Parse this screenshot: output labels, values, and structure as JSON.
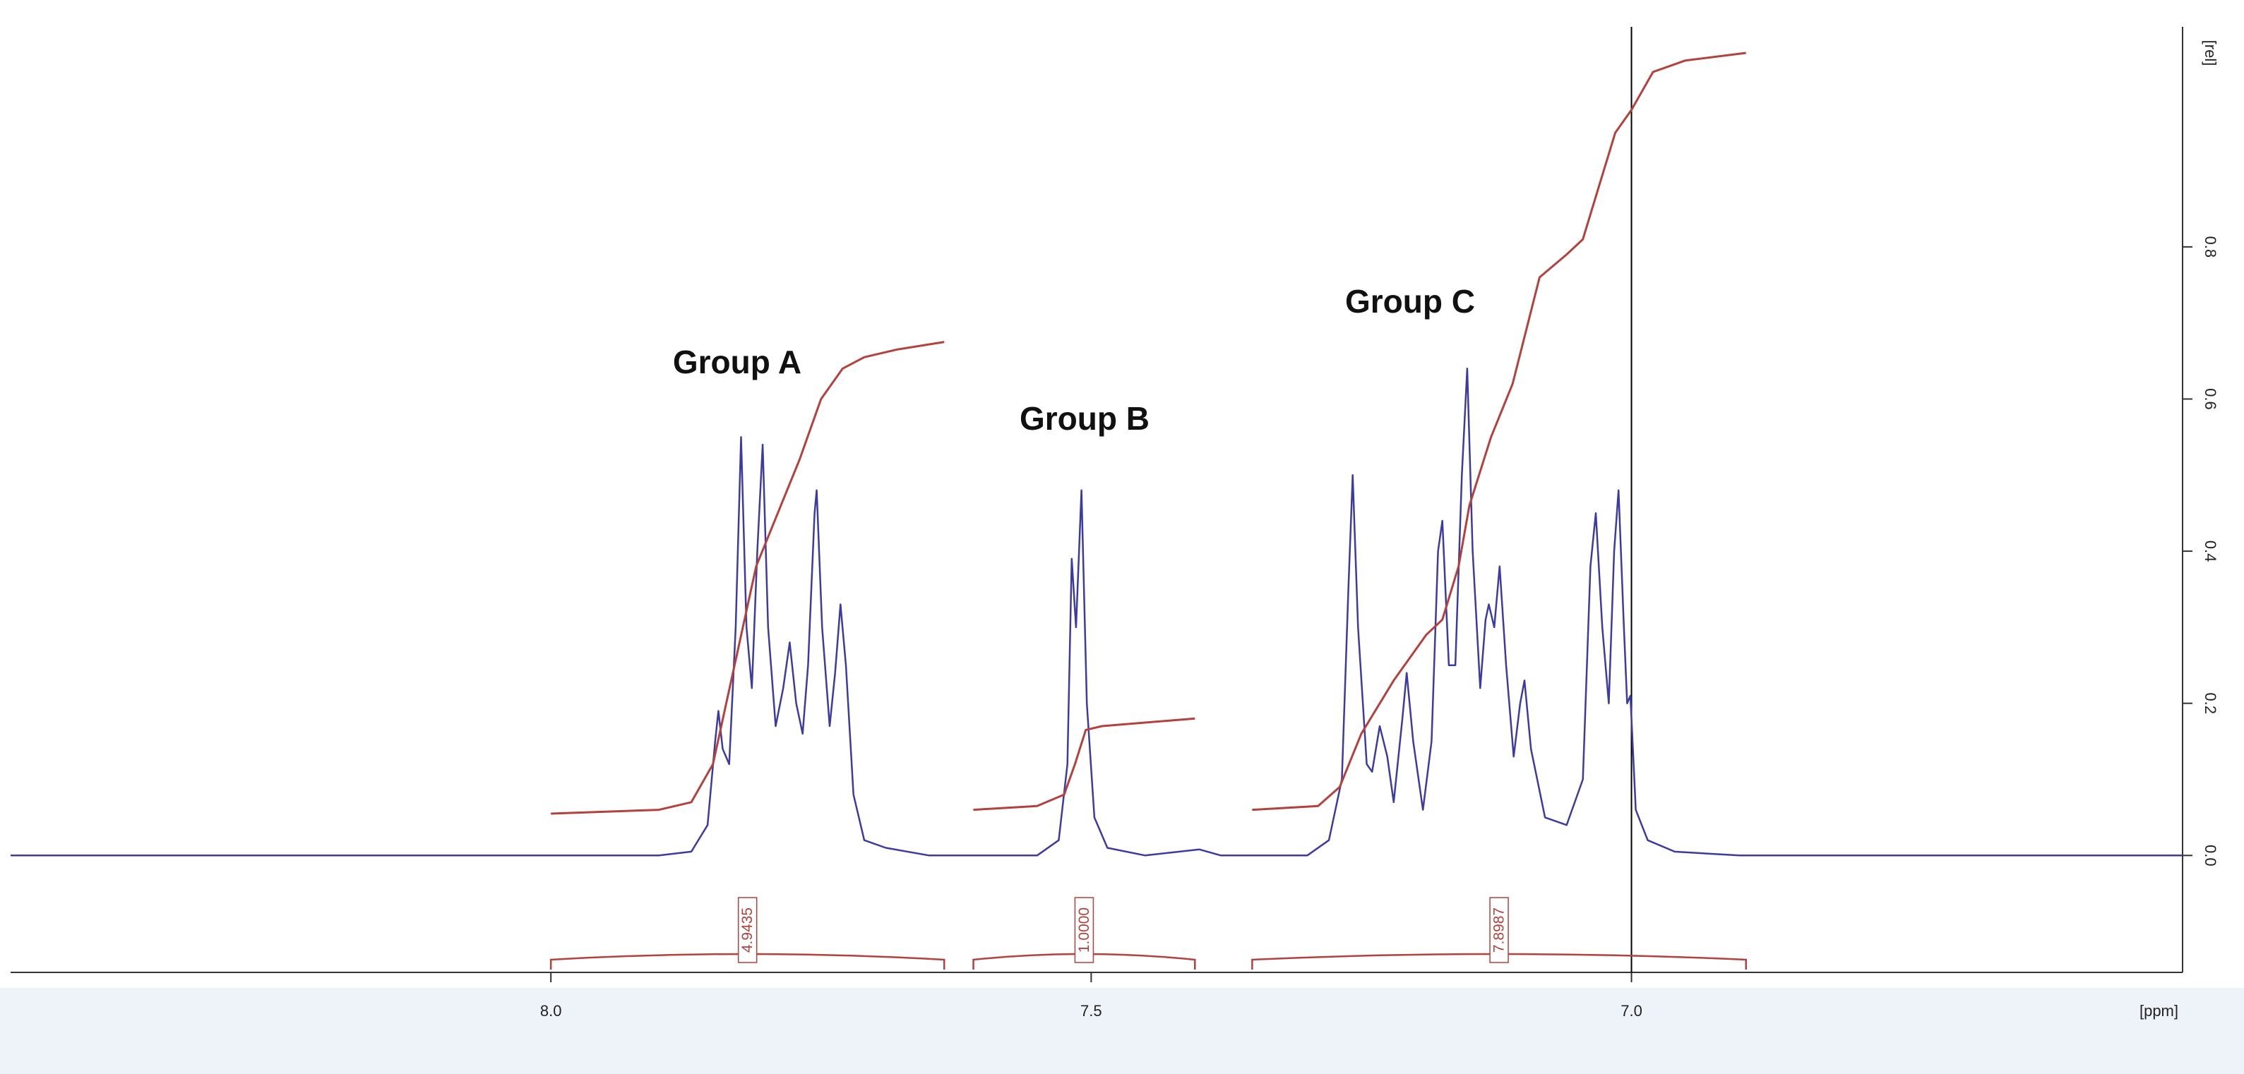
{
  "chart_data": {
    "type": "line",
    "x_label": "[ppm]",
    "y_label": "[rel]",
    "xlim": [
      8.5,
      6.49
    ],
    "ylim": [
      -0.15,
      1.08
    ],
    "xticks": [
      {
        "value": 8,
        "label": "8.0"
      },
      {
        "value": 7.5,
        "label": "7.5"
      },
      {
        "value": 7,
        "label": "7.0"
      }
    ],
    "yticks": [
      {
        "value": 0,
        "label": "0.0"
      },
      0.2,
      0.4,
      0.6,
      0.8
    ],
    "cursor_x": 7.0,
    "cursor_color": "#000000",
    "series": [
      {
        "color": "#3b3ba3",
        "x": [
          8.5,
          7.9,
          7.87,
          7.855,
          7.848,
          7.845,
          7.841,
          7.835,
          7.829,
          7.824,
          7.819,
          7.814,
          7.809,
          7.804,
          7.799,
          7.792,
          7.785,
          7.779,
          7.773,
          7.767,
          7.762,
          7.756,
          7.754,
          7.749,
          7.742,
          7.737,
          7.732,
          7.727,
          7.72,
          7.71,
          7.69,
          7.65,
          7.55,
          7.53,
          7.522,
          7.518,
          7.514,
          7.509,
          7.504,
          7.497,
          7.485,
          7.45,
          7.4,
          7.38,
          7.3,
          7.28,
          7.268,
          7.262,
          7.258,
          7.253,
          7.245,
          7.24,
          7.233,
          7.226,
          7.22,
          7.212,
          7.208,
          7.202,
          7.193,
          7.185,
          7.179,
          7.175,
          7.169,
          7.163,
          7.157,
          7.152,
          7.147,
          7.14,
          7.135,
          7.132,
          7.127,
          7.122,
          7.116,
          7.109,
          7.103,
          7.099,
          7.093,
          7.08,
          7.06,
          7.045,
          7.038,
          7.033,
          7.027,
          7.021,
          7.016,
          7.012,
          7.007,
          7.004,
          7.001,
          6.996,
          6.985,
          6.96,
          6.9,
          6.49
        ],
        "values": [
          0,
          0,
          0.005,
          0.04,
          0.15,
          0.19,
          0.14,
          0.12,
          0.3,
          0.55,
          0.3,
          0.22,
          0.4,
          0.54,
          0.3,
          0.17,
          0.22,
          0.28,
          0.2,
          0.16,
          0.25,
          0.45,
          0.48,
          0.3,
          0.17,
          0.24,
          0.33,
          0.25,
          0.08,
          0.02,
          0.01,
          0,
          0,
          0.02,
          0.12,
          0.39,
          0.3,
          0.48,
          0.2,
          0.05,
          0.01,
          0,
          0.008,
          0,
          0,
          0.02,
          0.1,
          0.35,
          0.5,
          0.3,
          0.12,
          0.11,
          0.17,
          0.13,
          0.07,
          0.18,
          0.24,
          0.15,
          0.06,
          0.15,
          0.4,
          0.44,
          0.25,
          0.25,
          0.5,
          0.64,
          0.4,
          0.22,
          0.31,
          0.33,
          0.3,
          0.38,
          0.25,
          0.13,
          0.2,
          0.23,
          0.14,
          0.05,
          0.04,
          0.1,
          0.38,
          0.45,
          0.3,
          0.2,
          0.4,
          0.48,
          0.3,
          0.2,
          0.21,
          0.06,
          0.02,
          0.005,
          0,
          0
        ]
      },
      {
        "color": "#b5403c",
        "x": [
          8.0,
          7.9,
          7.87,
          7.85,
          7.83,
          7.81,
          7.79,
          7.77,
          7.75,
          7.73,
          7.71,
          7.68,
          7.636
        ],
        "values": [
          0.055,
          0.06,
          0.07,
          0.12,
          0.25,
          0.38,
          0.45,
          0.52,
          0.6,
          0.64,
          0.655,
          0.665,
          0.675
        ]
      },
      {
        "color": "#b5403c",
        "x": [
          7.609,
          7.55,
          7.525,
          7.515,
          7.505,
          7.49,
          7.404
        ],
        "values": [
          0.06,
          0.065,
          0.08,
          0.12,
          0.165,
          0.17,
          0.18
        ]
      },
      {
        "color": "#b5403c",
        "x": [
          7.351,
          7.29,
          7.27,
          7.25,
          7.22,
          7.19,
          7.175,
          7.16,
          7.15,
          7.13,
          7.11,
          7.085,
          7.06,
          7.045,
          7.03,
          7.015,
          7.0,
          6.98,
          6.95,
          6.894
        ],
        "values": [
          0.06,
          0.065,
          0.09,
          0.16,
          0.23,
          0.29,
          0.31,
          0.38,
          0.46,
          0.55,
          0.62,
          0.76,
          0.79,
          0.81,
          0.88,
          0.95,
          0.98,
          1.03,
          1.045,
          1.055
        ]
      }
    ],
    "integrals": {
      "color": "#b5403c",
      "values": [
        4.9435,
        1,
        7.8987
      ],
      "value_labels": [
        "4.9435",
        "1.0000",
        "7.8987"
      ],
      "ranges": [
        [
          8.0,
          7.636
        ],
        [
          7.609,
          7.404
        ],
        [
          7.351,
          6.894
        ]
      ]
    },
    "annotations": [
      "Group A",
      "Group B",
      "Group C"
    ]
  }
}
